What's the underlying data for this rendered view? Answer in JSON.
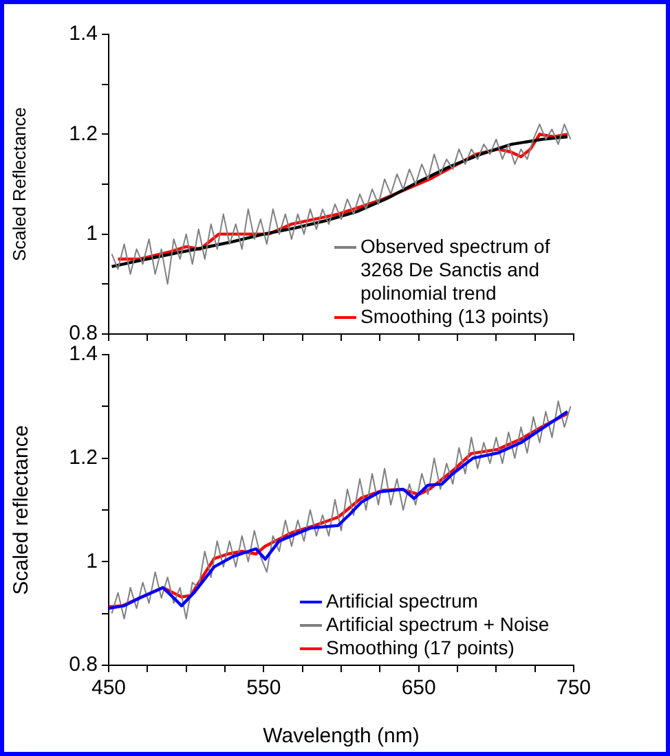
{
  "chart_data": [
    {
      "type": "line",
      "ylabel": "Scaled Reflectance",
      "xlim": [
        450,
        750
      ],
      "xticks": [
        450,
        {
          "value": 475,
          "label": null
        },
        {
          "value": 500,
          "label": null
        },
        {
          "value": 525,
          "label": null
        },
        550,
        {
          "value": 575,
          "label": null
        },
        {
          "value": 600,
          "label": null
        },
        {
          "value": 625,
          "label": null
        },
        650,
        {
          "value": 675,
          "label": null
        },
        {
          "value": 700,
          "label": null
        },
        {
          "value": 725,
          "label": null
        },
        750
      ],
      "ylim": [
        0.8,
        1.4
      ],
      "yticks": [
        0.8,
        {
          "value": 0.9,
          "label": null
        },
        1,
        {
          "value": 1.1,
          "label": null
        },
        1.2,
        {
          "value": 1.3,
          "label": null
        },
        1.4
      ],
      "tick_labels": "y",
      "grid": false,
      "marker": "none",
      "line_style": "solid",
      "legend": "bottom right",
      "series": [
        {
          "name": "Observed spectrum of 3268 De Sanctis and polinomial trend",
          "color": "#808080",
          "x": [
            452,
            456,
            460,
            464,
            468,
            472,
            476,
            480,
            484,
            488,
            492,
            496,
            500,
            504,
            508,
            512,
            516,
            520,
            524,
            528,
            532,
            536,
            540,
            544,
            548,
            552,
            556,
            560,
            564,
            568,
            572,
            576,
            580,
            584,
            588,
            592,
            596,
            600,
            604,
            608,
            612,
            616,
            620,
            624,
            628,
            632,
            636,
            640,
            644,
            648,
            652,
            656,
            660,
            664,
            668,
            672,
            676,
            680,
            684,
            688,
            692,
            696,
            700,
            704,
            708,
            712,
            716,
            720,
            724,
            728,
            732,
            736,
            740,
            744,
            748
          ],
          "values": [
            0.96,
            0.93,
            0.98,
            0.92,
            0.97,
            0.94,
            0.99,
            0.92,
            0.97,
            0.9,
            0.99,
            0.95,
            1.0,
            0.94,
            1.01,
            0.95,
            1.02,
            0.97,
            1.04,
            0.98,
            1.02,
            0.97,
            1.05,
            0.99,
            1.03,
            0.98,
            1.05,
            1.0,
            1.04,
            0.99,
            1.04,
            1.0,
            1.05,
            1.01,
            1.05,
            1.02,
            1.06,
            1.03,
            1.07,
            1.04,
            1.08,
            1.05,
            1.09,
            1.06,
            1.11,
            1.08,
            1.12,
            1.09,
            1.13,
            1.1,
            1.14,
            1.11,
            1.16,
            1.12,
            1.15,
            1.13,
            1.17,
            1.14,
            1.17,
            1.15,
            1.18,
            1.16,
            1.19,
            1.15,
            1.18,
            1.14,
            1.17,
            1.15,
            1.19,
            1.22,
            1.19,
            1.21,
            1.18,
            1.22,
            1.19
          ]
        },
        {
          "color": "#000000",
          "x": [
            452,
            470,
            490,
            510,
            530,
            550,
            570,
            590,
            610,
            630,
            650,
            670,
            690,
            710,
            730,
            746
          ],
          "values": [
            0.935,
            0.947,
            0.96,
            0.972,
            0.985,
            1.0,
            1.012,
            1.027,
            1.045,
            1.072,
            1.105,
            1.135,
            1.16,
            1.18,
            1.19,
            1.195
          ]
        },
        {
          "name": "Smoothing (13 points)",
          "color": "#ff0000",
          "x": [
            456,
            470,
            490,
            500,
            509,
            521,
            539,
            553,
            568,
            583,
            598,
            613,
            627,
            642,
            657,
            672,
            687,
            701,
            709,
            716,
            722,
            728,
            737,
            746
          ],
          "values": [
            0.95,
            0.95,
            0.965,
            0.975,
            0.97,
            1.0,
            1.0,
            1.0,
            1.02,
            1.03,
            1.04,
            1.055,
            1.07,
            1.09,
            1.11,
            1.135,
            1.16,
            1.17,
            1.165,
            1.155,
            1.17,
            1.2,
            1.195,
            1.2
          ]
        }
      ]
    },
    {
      "type": "line",
      "xlabel": "Wavelength (nm)",
      "ylabel": "Scaled reflectance",
      "xlim": [
        450,
        750
      ],
      "xticks": [
        450,
        {
          "value": 475,
          "label": null
        },
        {
          "value": 500,
          "label": null
        },
        {
          "value": 525,
          "label": null
        },
        550,
        {
          "value": 575,
          "label": null
        },
        {
          "value": 600,
          "label": null
        },
        {
          "value": 625,
          "label": null
        },
        650,
        {
          "value": 675,
          "label": null
        },
        {
          "value": 700,
          "label": null
        },
        {
          "value": 725,
          "label": null
        },
        750
      ],
      "ylim": [
        0.8,
        1.4
      ],
      "yticks": [
        0.8,
        {
          "value": 0.9,
          "label": null
        },
        1,
        {
          "value": 1.1,
          "label": null
        },
        1.2,
        {
          "value": 1.3,
          "label": null
        },
        1.4
      ],
      "grid": false,
      "marker": "none",
      "line_style": "solid",
      "legend": "bottom right",
      "series": [
        {
          "name": "Artificial spectrum",
          "color": "#0000ff",
          "x": [
            450,
            460,
            470,
            485,
            492,
            497,
            505,
            518,
            530,
            545,
            551,
            560,
            580,
            598,
            605,
            613,
            625,
            640,
            647,
            656,
            665,
            672,
            685,
            701,
            716,
            731,
            746
          ],
          "values": [
            0.91,
            0.915,
            0.93,
            0.95,
            0.93,
            0.915,
            0.94,
            0.99,
            1.01,
            1.025,
            1.005,
            1.04,
            1.065,
            1.07,
            1.09,
            1.115,
            1.135,
            1.14,
            1.122,
            1.148,
            1.15,
            1.17,
            1.2,
            1.21,
            1.23,
            1.26,
            1.29
          ]
        },
        {
          "name": "Artificial spectrum + Noise",
          "color": "#808080",
          "x": [
            452,
            456,
            460,
            464,
            468,
            472,
            476,
            480,
            484,
            488,
            492,
            496,
            500,
            504,
            508,
            512,
            516,
            520,
            524,
            528,
            532,
            536,
            540,
            544,
            548,
            552,
            556,
            560,
            564,
            568,
            572,
            576,
            580,
            584,
            588,
            592,
            596,
            600,
            604,
            608,
            612,
            616,
            620,
            624,
            628,
            632,
            636,
            640,
            644,
            648,
            652,
            656,
            660,
            664,
            668,
            672,
            676,
            680,
            684,
            688,
            692,
            696,
            700,
            704,
            708,
            712,
            716,
            720,
            724,
            728,
            732,
            736,
            740,
            744,
            748
          ],
          "values": [
            0.9,
            0.94,
            0.89,
            0.95,
            0.91,
            0.96,
            0.92,
            0.98,
            0.93,
            0.97,
            0.92,
            0.95,
            0.89,
            0.96,
            0.95,
            1.02,
            0.97,
            1.04,
            0.99,
            1.04,
            0.99,
            1.05,
            1.0,
            1.06,
            1.01,
            0.98,
            1.05,
            1.02,
            1.08,
            1.03,
            1.08,
            1.04,
            1.1,
            1.05,
            1.09,
            1.05,
            1.12,
            1.06,
            1.14,
            1.09,
            1.16,
            1.1,
            1.17,
            1.11,
            1.18,
            1.11,
            1.16,
            1.1,
            1.15,
            1.11,
            1.17,
            1.13,
            1.2,
            1.14,
            1.19,
            1.15,
            1.22,
            1.17,
            1.24,
            1.18,
            1.23,
            1.19,
            1.24,
            1.19,
            1.25,
            1.2,
            1.26,
            1.21,
            1.28,
            1.23,
            1.29,
            1.24,
            1.31,
            1.26,
            1.3
          ]
        },
        {
          "name": "Smoothing (17 points)",
          "color": "#ff0000",
          "x": [
            450,
            459,
            470,
            485,
            497,
            503,
            518,
            527,
            536,
            545,
            551,
            568,
            583,
            598,
            613,
            627,
            639,
            650,
            657,
            672,
            684,
            701,
            716,
            731,
            746
          ],
          "values": [
            0.913,
            0.915,
            0.93,
            0.95,
            0.932,
            0.935,
            1.006,
            1.015,
            1.02,
            1.015,
            1.03,
            1.056,
            1.07,
            1.086,
            1.123,
            1.138,
            1.14,
            1.13,
            1.14,
            1.176,
            1.209,
            1.217,
            1.237,
            1.263,
            1.286
          ]
        }
      ]
    }
  ]
}
